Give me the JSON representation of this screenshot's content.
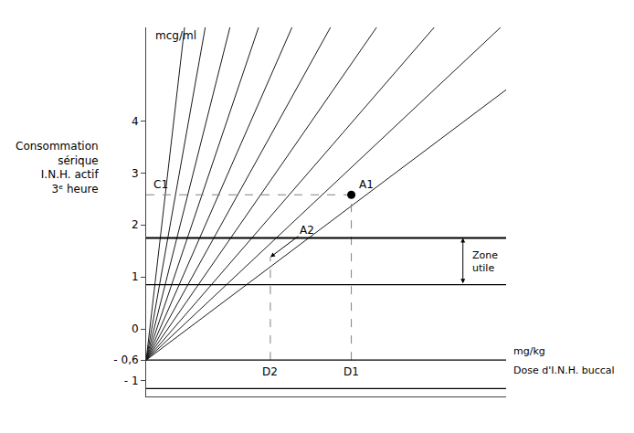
{
  "chart_data": {
    "type": "line",
    "ylabel": "mcg/ml",
    "xlabel": "mg/kg",
    "x_caption": "Dose d'I.N.H. buccal",
    "y_caption": [
      "Consommation",
      "sérique",
      "I.N.H. actif",
      "3ᵉ heure"
    ],
    "xlim": [
      0,
      10
    ],
    "ylim": [
      -1.3,
      5.8
    ],
    "yticks": [
      {
        "value": -1,
        "label": "- 1"
      },
      {
        "value": -0.6,
        "label": "- 0,6"
      },
      0,
      1,
      2,
      3,
      4
    ],
    "tick_labels": "y",
    "grid": false,
    "series": [
      {
        "color": "#1a1a1a",
        "x": [
          0,
          10
        ],
        "values": [
          -0.6,
          4.6
        ]
      },
      {
        "color": "#1a1a1a",
        "x": [
          0,
          9.846153846153847
        ],
        "values": [
          -0.6,
          5.8
        ]
      },
      {
        "color": "#1a1a1a",
        "x": [
          0,
          8
        ],
        "values": [
          -0.6,
          5.8
        ]
      },
      {
        "color": "#1a1a1a",
        "x": [
          0,
          6.4
        ],
        "values": [
          -0.6,
          5.8
        ]
      },
      {
        "color": "#1a1a1a",
        "x": [
          0,
          5.12
        ],
        "values": [
          -0.6,
          5.8
        ]
      },
      {
        "color": "#1a1a1a",
        "x": [
          0,
          4.050632911392405
        ],
        "values": [
          -0.6,
          5.8
        ]
      },
      {
        "color": "#1a1a1a",
        "x": [
          0,
          3.1219512195121952
        ],
        "values": [
          -0.6,
          5.8
        ]
      },
      {
        "color": "#1a1a1a",
        "x": [
          0,
          2.327272727272727
        ],
        "values": [
          -0.6,
          5.8
        ]
      },
      {
        "color": "#1a1a1a",
        "x": [
          0,
          1.641025641025641
        ],
        "values": [
          -0.6,
          5.8
        ]
      },
      {
        "color": "#1a1a1a",
        "x": [
          0,
          1.0666666666666667
        ],
        "values": [
          -0.6,
          5.8
        ]
      }
    ],
    "hlines": [
      {
        "y": 1.75,
        "color": "black"
      },
      {
        "y": 0.85,
        "color": "black"
      },
      {
        "y": -0.6,
        "color": "black"
      },
      {
        "y": -1.15,
        "color": "black"
      }
    ],
    "points": [
      {
        "label": "A1",
        "x": 5.7,
        "y": 2.58,
        "color": "black",
        "marker": "circle"
      }
    ],
    "annotations": [
      {
        "text": "A2",
        "x": 3.45,
        "y": 1.38
      }
    ],
    "guides": [
      {
        "label": "C1",
        "x": [
          0,
          5.7
        ],
        "y": [
          2.58,
          2.58
        ],
        "color": "gray",
        "line_style": "dashed"
      },
      {
        "label": "D1",
        "x": [
          5.7,
          5.7
        ],
        "y": [
          -0.6,
          2.58
        ],
        "color": "gray",
        "line_style": "dashed"
      },
      {
        "label": "D2",
        "x": [
          3.45,
          3.45
        ],
        "y": [
          -0.6,
          1.38
        ],
        "color": "gray",
        "line_style": "dashed"
      }
    ],
    "zone": {
      "label": "Zone\nutile",
      "x": 8.8,
      "ymin": 0.85,
      "ymax": 1.75
    }
  }
}
